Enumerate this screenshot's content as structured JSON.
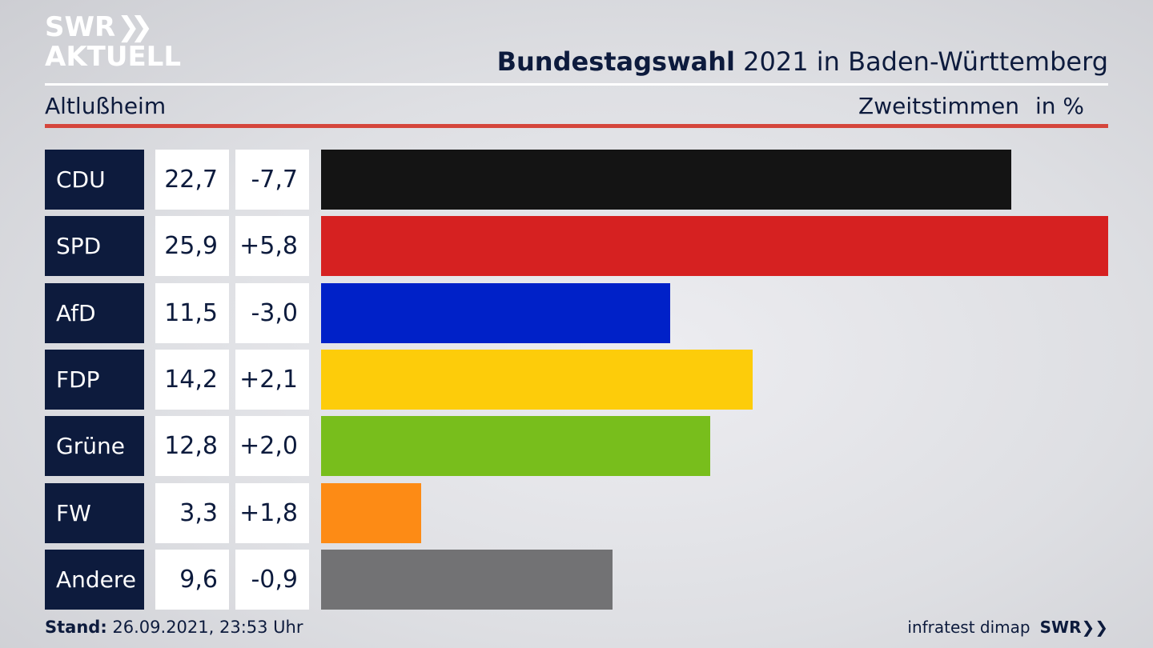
{
  "header": {
    "logo_line1": "SWR",
    "logo_line2": "AKTUELL",
    "title_bold": "Bundestagswahl",
    "title_rest": " 2021 in Baden-Württemberg",
    "region": "Altlußheim",
    "metric": "Zweitstimmen",
    "unit": "in %"
  },
  "chart_data": {
    "type": "bar",
    "orientation": "horizontal",
    "categories": [
      "CDU",
      "SPD",
      "AfD",
      "FDP",
      "Grüne",
      "FW",
      "Andere"
    ],
    "values": [
      22.7,
      25.9,
      11.5,
      14.2,
      12.8,
      3.3,
      9.6
    ],
    "value_labels": [
      "22,7",
      "25,9",
      "11,5",
      "14,2",
      "12,8",
      "3,3",
      "9,6"
    ],
    "change_labels": [
      "-7,7",
      "+5,8",
      "-3,0",
      "+2,1",
      "+2,0",
      "+1,8",
      "-0,9"
    ],
    "changes": [
      -7.7,
      5.8,
      -3.0,
      2.1,
      2.0,
      1.8,
      -0.9
    ],
    "colors": [
      "#141414",
      "#d62121",
      "#0021c8",
      "#fdcc0a",
      "#78be1c",
      "#fd8b15",
      "#727274"
    ],
    "xlim": [
      0,
      25.9
    ],
    "title": "Bundestagswahl 2021 in Baden-Württemberg",
    "grid": false,
    "legend": "none"
  },
  "footer": {
    "stand_label": "Stand:",
    "stand_value": " 26.09.2021, 23:53 Uhr",
    "source": "infratest dimap",
    "brand": "SWR"
  }
}
